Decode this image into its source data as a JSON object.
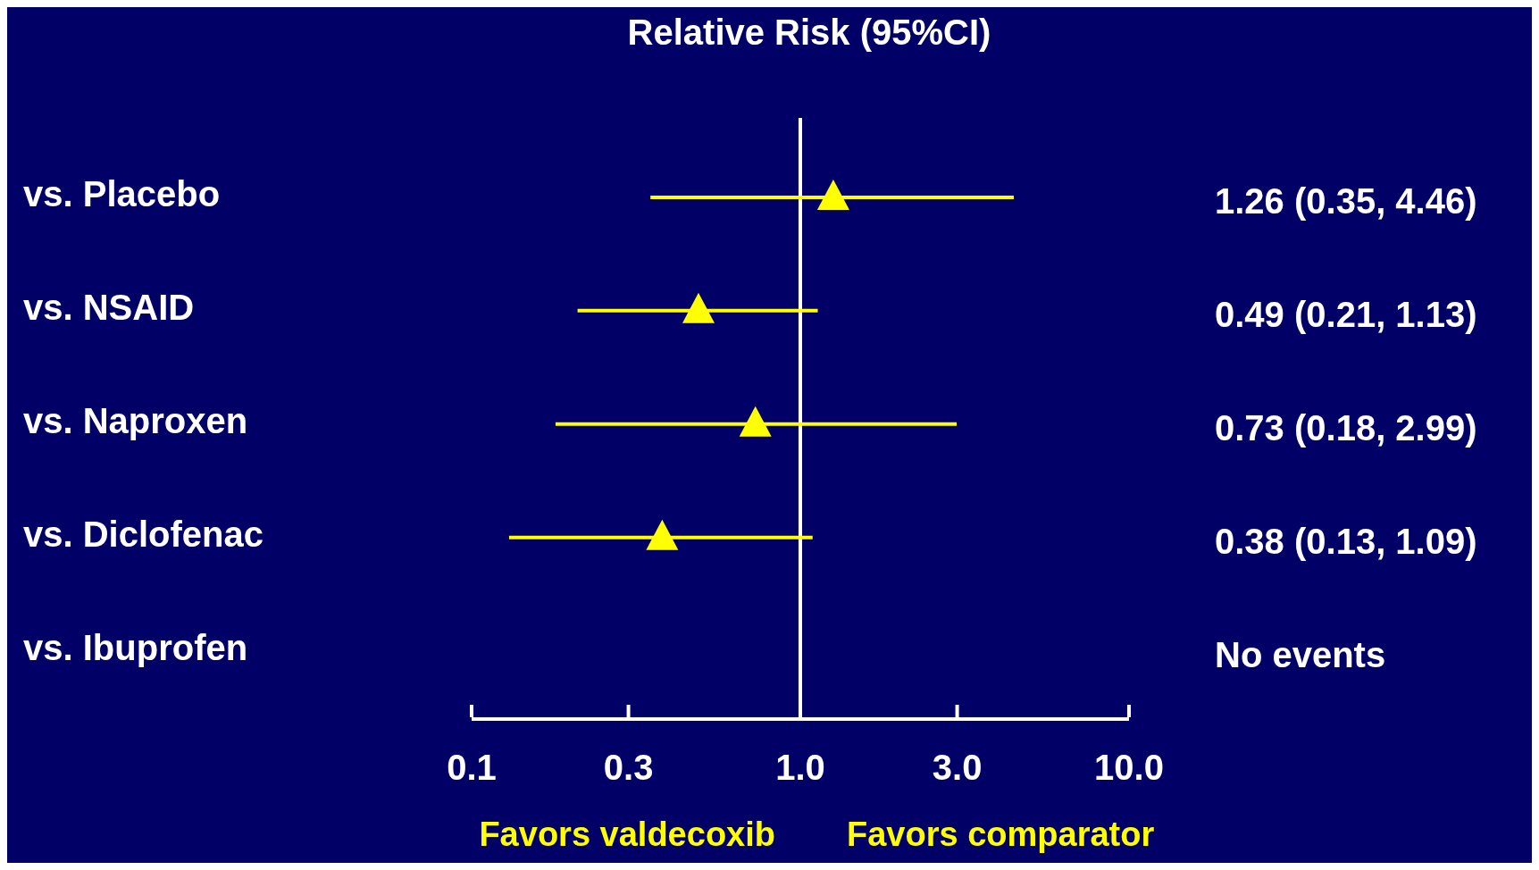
{
  "chart_data": {
    "type": "scatter",
    "title": "Relative Risk (95%CI)",
    "orientation": "horizontal",
    "categories": [
      "vs. Placebo",
      "vs. NSAID",
      "vs. Naproxen",
      "vs. Diclofenac",
      "vs. Ibuprofen"
    ],
    "values": [
      1.26,
      0.49,
      0.73,
      0.38,
      null
    ],
    "errors": [
      [
        0.35,
        4.46
      ],
      [
        0.21,
        1.13
      ],
      [
        0.18,
        2.99
      ],
      [
        0.13,
        1.09
      ],
      null
    ],
    "value_labels": [
      "1.26 (0.35, 4.46)",
      "0.49 (0.21, 1.13)",
      "0.73 (0.18, 2.99)",
      "0.38 (0.13, 1.09)",
      "No events"
    ],
    "color": "#ffff00",
    "marker": "triangle",
    "log": "x",
    "xlim": [
      0.1,
      10
    ],
    "xticks": [
      {
        "value": 0.1,
        "label": "0.1"
      },
      {
        "value": 0.3,
        "label": "0.3"
      },
      {
        "value": 1,
        "label": "1.0"
      },
      {
        "value": 3,
        "label": "3.0"
      },
      {
        "value": 10,
        "label": "10.0"
      }
    ],
    "ref_lines": [
      {
        "axis": "x",
        "value": 1,
        "color": "#ffffff"
      }
    ],
    "annotations": [
      "Favors valdecoxib",
      "Favors comparator"
    ]
  }
}
